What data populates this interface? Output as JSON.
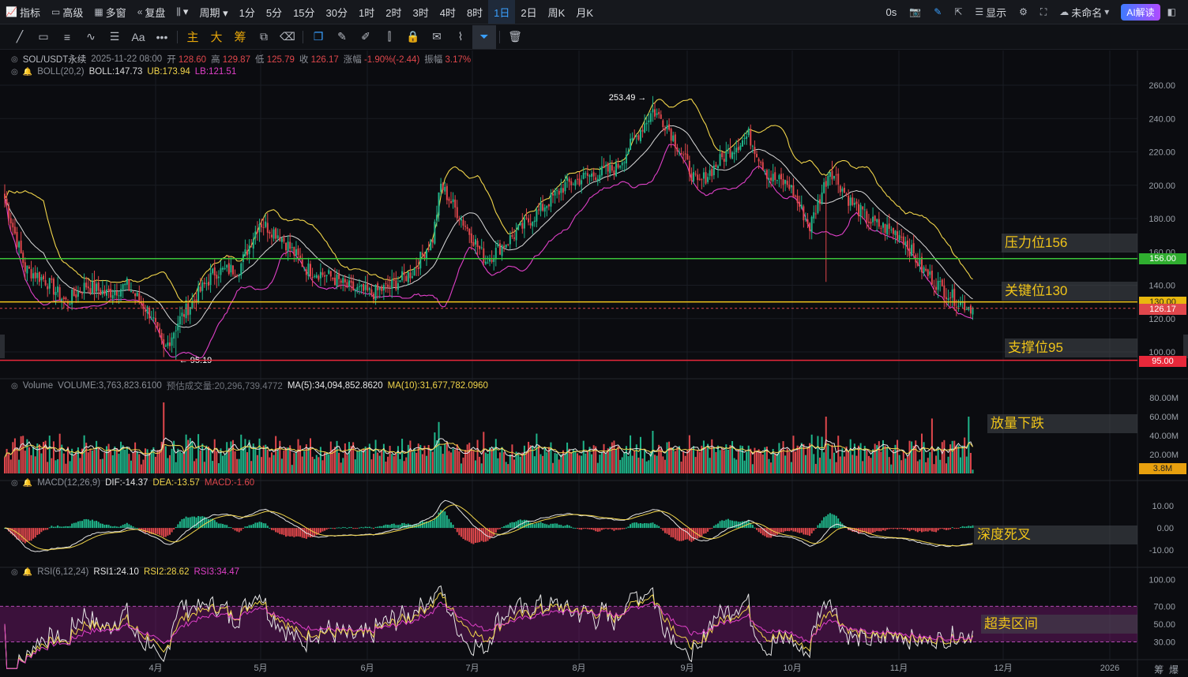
{
  "toolbar": {
    "left": [
      {
        "icon": "indicator-icon",
        "glyph": "📈",
        "label": "指标"
      },
      {
        "icon": "advanced-icon",
        "glyph": "▭",
        "label": "高级"
      },
      {
        "icon": "multi-window-icon",
        "glyph": "▦",
        "label": "多窗"
      },
      {
        "icon": "replay-icon",
        "glyph": "«",
        "label": "复盘"
      },
      {
        "icon": "candle-type-icon",
        "glyph": "⫼",
        "label": "▾"
      },
      {
        "icon": "",
        "glyph": "",
        "label": "周期 ▾"
      }
    ],
    "intervals": [
      "1分",
      "5分",
      "15分",
      "30分",
      "1时",
      "2时",
      "3时",
      "4时",
      "8时",
      "1日",
      "2日",
      "周K",
      "月K"
    ],
    "active_interval": "1日",
    "right": {
      "latency": "0s",
      "display": "显示",
      "layout_name": "未命名",
      "ai_label": "AI解读"
    }
  },
  "draw_tools": [
    {
      "name": "trend-line-icon",
      "glyph": "╱"
    },
    {
      "name": "rectangle-icon",
      "glyph": "▭"
    },
    {
      "name": "parallel-lines-icon",
      "glyph": "≡"
    },
    {
      "name": "wave-icon",
      "glyph": "∿"
    },
    {
      "name": "fib-icon",
      "glyph": "☰"
    },
    {
      "name": "text-icon",
      "glyph": "Aa"
    },
    {
      "name": "more-icon",
      "glyph": "•••"
    },
    {
      "name": "main-force-icon",
      "glyph": "主",
      "cn": true
    },
    {
      "name": "big-order-icon",
      "glyph": "大",
      "cn": true
    },
    {
      "name": "chip-icon",
      "glyph": "筹",
      "cn": true
    },
    {
      "name": "magnet-icon",
      "glyph": "⧉"
    },
    {
      "name": "eraser-icon",
      "glyph": "⌫"
    },
    {
      "name": "copy-icon",
      "glyph": "❐",
      "blue": true
    },
    {
      "name": "ruler-icon",
      "glyph": "✎"
    },
    {
      "name": "pencil-icon",
      "glyph": "✐"
    },
    {
      "name": "bar-compare-icon",
      "glyph": "⫿"
    },
    {
      "name": "lock-icon",
      "glyph": "🔒"
    },
    {
      "name": "notes-icon",
      "glyph": "✉"
    },
    {
      "name": "brush-icon",
      "glyph": "⌇"
    },
    {
      "name": "filter-icon",
      "glyph": "⏷",
      "sel": true
    },
    {
      "name": "trash-icon",
      "glyph": "🗑"
    }
  ],
  "legend": {
    "symbol": "SOL/USDT永续",
    "datetime": "2025-11-22 08:00",
    "open_label": "开",
    "open": "128.60",
    "high_label": "高",
    "high": "129.87",
    "low_label": "低",
    "low": "125.79",
    "close_label": "收",
    "close": "126.17",
    "change_label": "涨幅",
    "change": "-1.90%(-2.44)",
    "amp_label": "振幅",
    "amp": "3.17%",
    "boll_name": "BOLL(20,2)",
    "boll": "BOLL:147.73",
    "ub": "UB:173.94",
    "lb": "LB:121.51",
    "vol_name": "Volume",
    "vol": "VOLUME:3,763,823.6100",
    "vol_est": "预估成交量:20,296,739.4772",
    "ma5": "MA(5):34,094,852.8620",
    "ma10": "MA(10):31,677,782.0960",
    "macd_name": "MACD(12,26,9)",
    "dif": "DIF:-14.37",
    "dea": "DEA:-13.57",
    "macd": "MACD:-1.60",
    "rsi_name": "RSI(6,12,24)",
    "rsi1": "RSI1:24.10",
    "rsi2": "RSI2:28.62",
    "rsi3": "RSI3:34.47"
  },
  "annotations": {
    "resistance": "压力位156",
    "key": "关键位130",
    "support": "支撑位95",
    "volume": "放量下跌",
    "macd": "深度死叉",
    "rsi": "超卖区间"
  },
  "price_tags": {
    "resistance": "156.00",
    "key": "130.00",
    "last": "126.17",
    "support": "95.00",
    "volume_last": "3.8M"
  },
  "colors": {
    "up": "#1fb58a",
    "down": "#e0474c",
    "ub": "#f0d44a",
    "boll": "#d9d9d9",
    "lb": "#e040c8",
    "green_line": "#3ac43a",
    "yellow_line": "#f2c61a",
    "red_line": "#e8283a"
  },
  "chart_data": {
    "type": "candlestick",
    "symbol": "SOL/USDT永续",
    "price_axis": {
      "ticks": [
        100,
        120,
        140,
        160,
        180,
        200,
        220,
        240,
        260
      ],
      "range": [
        95,
        265
      ]
    },
    "high_marker": {
      "label": "253.49",
      "value": 253.49
    },
    "low_marker": {
      "label": "95.19",
      "value": 95.19
    },
    "x_labels": [
      "4月",
      "5月",
      "6月",
      "7月",
      "8月",
      "9月",
      "10月",
      "11月",
      "12月",
      "2026"
    ],
    "levels": [
      {
        "value": 156.0
      },
      {
        "value": 130.0
      },
      {
        "value": 95.0
      }
    ],
    "last_price": 126.17,
    "close_anchors": [
      [
        0,
        192
      ],
      [
        10,
        150
      ],
      [
        20,
        143
      ],
      [
        30,
        130
      ],
      [
        40,
        140
      ],
      [
        50,
        135
      ],
      [
        60,
        140
      ],
      [
        72,
        122
      ],
      [
        78,
        100
      ],
      [
        85,
        118
      ],
      [
        95,
        135
      ],
      [
        103,
        148
      ],
      [
        115,
        150
      ],
      [
        125,
        178
      ],
      [
        135,
        170
      ],
      [
        148,
        150
      ],
      [
        160,
        145
      ],
      [
        170,
        138
      ],
      [
        180,
        135
      ],
      [
        190,
        140
      ],
      [
        200,
        148
      ],
      [
        210,
        168
      ],
      [
        214,
        200
      ],
      [
        225,
        178
      ],
      [
        236,
        155
      ],
      [
        248,
        168
      ],
      [
        260,
        182
      ],
      [
        275,
        200
      ],
      [
        285,
        205
      ],
      [
        300,
        210
      ],
      [
        318,
        245
      ],
      [
        325,
        236
      ],
      [
        340,
        200
      ],
      [
        355,
        220
      ],
      [
        365,
        230
      ],
      [
        375,
        205
      ],
      [
        385,
        200
      ],
      [
        395,
        175
      ],
      [
        405,
        210
      ],
      [
        415,
        190
      ],
      [
        425,
        178
      ],
      [
        440,
        170
      ],
      [
        450,
        150
      ],
      [
        460,
        138
      ],
      [
        468,
        130
      ],
      [
        475,
        126.17
      ]
    ],
    "volume_axis": {
      "ticks": [
        "20.00M",
        "40.00M",
        "60.00M",
        "80.00M"
      ],
      "range": [
        0,
        90
      ]
    },
    "macd_axis": {
      "ticks": [
        "10.00",
        "0.00",
        "-10.00"
      ],
      "range": [
        -16,
        15
      ]
    },
    "rsi_axis": {
      "ticks": [
        "30.00",
        "50.00",
        "70.00",
        "100.00"
      ],
      "range": [
        10,
        105
      ],
      "band": [
        30,
        70
      ]
    }
  }
}
